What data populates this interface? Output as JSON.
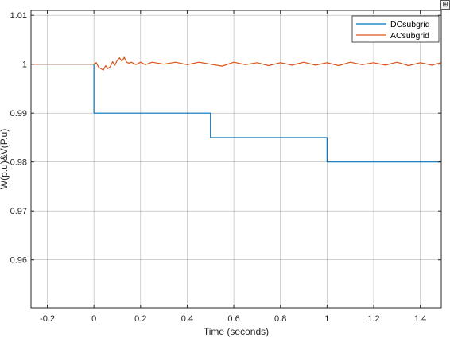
{
  "chart_data": {
    "type": "line",
    "title": "",
    "xlabel": "Time (seconds)",
    "ylabel": "W(p.u)&V(P.u)",
    "xlim": [
      -0.27,
      1.49
    ],
    "ylim": [
      0.9502,
      1.011
    ],
    "xticks": [
      -0.2,
      0,
      0.2,
      0.4,
      0.6,
      0.8,
      1,
      1.2,
      1.4
    ],
    "xtick_labels": [
      "-0.2",
      "0",
      "0.2",
      "0.4",
      "0.6",
      "0.8",
      "1",
      "1.2",
      "1.4"
    ],
    "yticks": [
      0.96,
      0.97,
      0.98,
      0.99,
      1,
      1.01
    ],
    "ytick_labels": [
      "0.96",
      "0.97",
      "0.98",
      "0.99",
      "1",
      "1.01"
    ],
    "grid": true,
    "legend_position": "top-right",
    "series": [
      {
        "name": "DCsubgrid",
        "color": "#0072BD",
        "x": [
          -0.27,
          0,
          0,
          0.5,
          0.5,
          1,
          1,
          1.49
        ],
        "y": [
          1,
          1,
          0.99,
          0.99,
          0.985,
          0.985,
          0.98,
          0.98
        ]
      },
      {
        "name": "ACsubgrid",
        "color": "#D95319",
        "x": [
          -0.27,
          0,
          0.01,
          0.02,
          0.03,
          0.04,
          0.05,
          0.06,
          0.07,
          0.08,
          0.09,
          0.1,
          0.11,
          0.12,
          0.13,
          0.14,
          0.15,
          0.16,
          0.18,
          0.2,
          0.22,
          0.25,
          0.3,
          0.35,
          0.4,
          0.45,
          0.5,
          0.55,
          0.6,
          0.65,
          0.7,
          0.75,
          0.8,
          0.85,
          0.9,
          0.95,
          1,
          1.05,
          1.1,
          1.15,
          1.2,
          1.25,
          1.3,
          1.35,
          1.4,
          1.45,
          1.49
        ],
        "y": [
          1,
          1,
          1.0003,
          0.9994,
          0.9991,
          0.9988,
          0.9997,
          0.9991,
          0.9995,
          1.0005,
          0.9998,
          1.0008,
          1.0013,
          1.0006,
          1.0014,
          1.0004,
          1.0002,
          1.0004,
          0.9999,
          1.0004,
          0.9999,
          1.0004,
          1.0,
          1.0004,
          0.9999,
          1.0004,
          1.0,
          0.9996,
          1.0004,
          0.9999,
          1.0003,
          0.9997,
          1.0003,
          0.9998,
          1.0004,
          0.9998,
          1.0003,
          0.9997,
          1.0004,
          0.9999,
          1.0003,
          0.9998,
          1.0004,
          0.9997,
          1.0003,
          0.9998,
          1.0003
        ]
      }
    ]
  }
}
